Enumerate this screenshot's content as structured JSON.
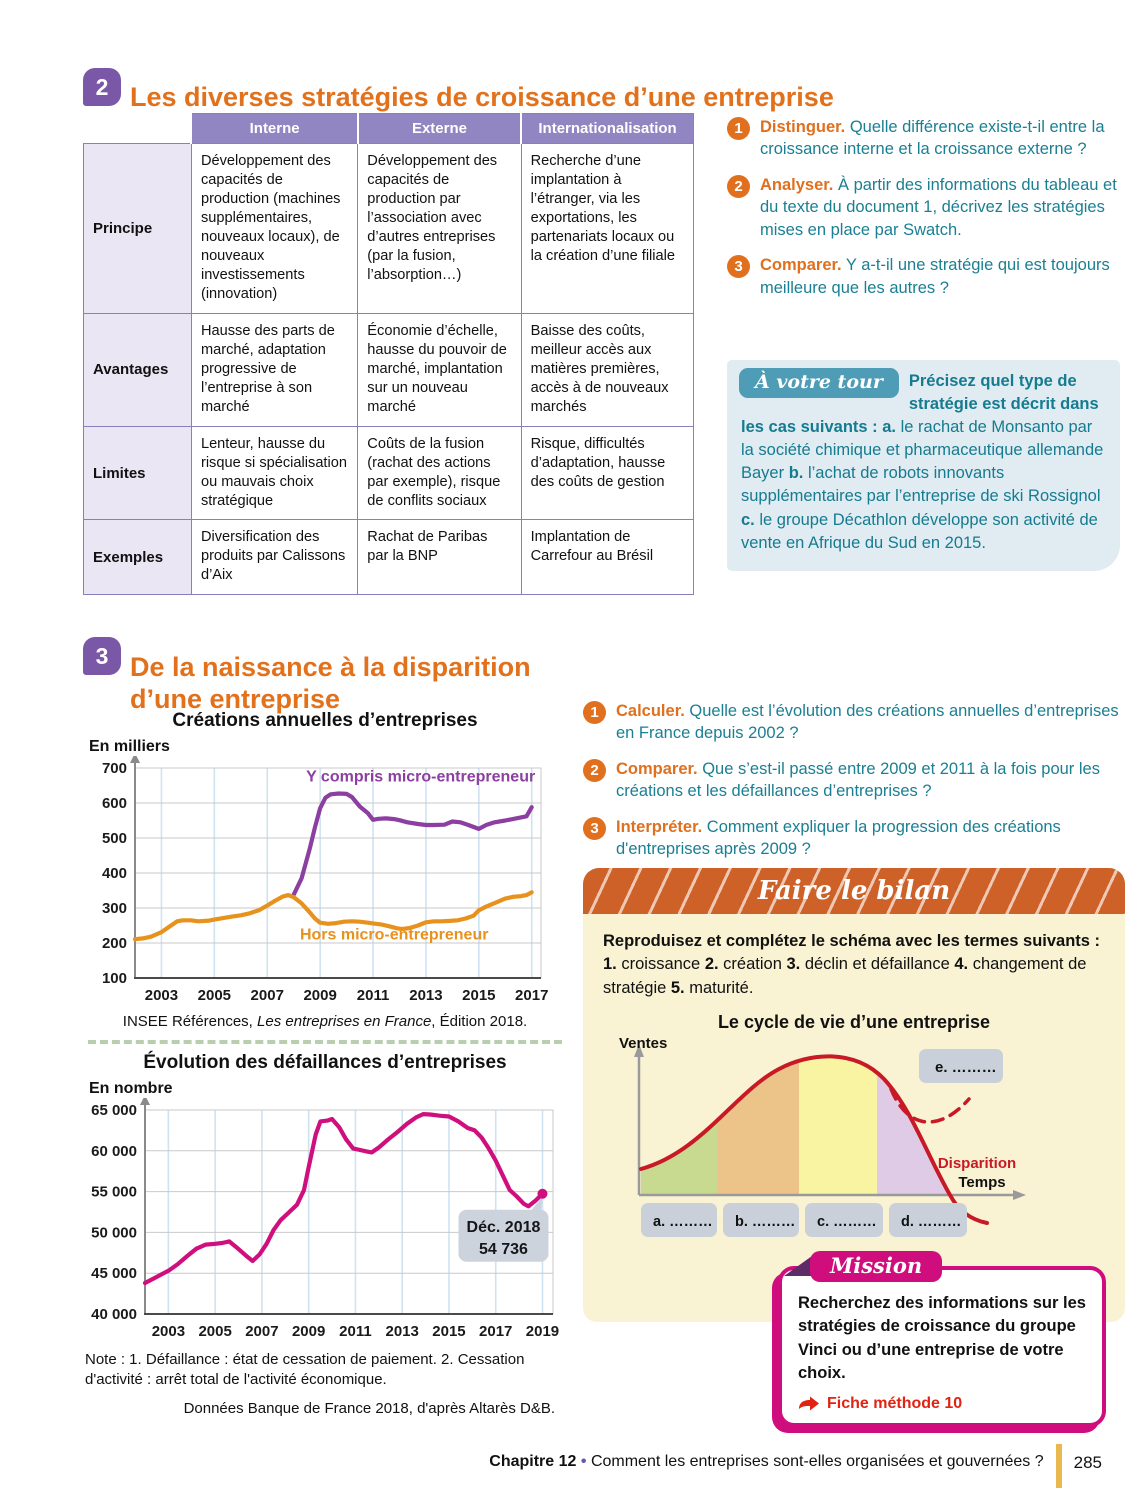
{
  "s2": {
    "num": "2",
    "title": "Les diverses stratégies de croissance d’une entreprise",
    "table": {
      "headers": [
        "Interne",
        "Externe",
        "Internationalisation"
      ],
      "rows": [
        {
          "label": "Principe",
          "cells": [
            "Développement des capacités de production (machines supplémentaires, nouveaux locaux), de nouveaux investissements (innovation)",
            "Développement des capacités de production par l’association avec d’autres entreprises (par la fusion, l’absorption…)",
            "Recherche d’une implantation à l’étranger, via les exportations, les partenariats locaux ou la création d’une filiale"
          ]
        },
        {
          "label": "Avantages",
          "cells": [
            "Hausse des parts de marché, adaptation progressive de l’entreprise à son marché",
            "Économie d’échelle, hausse du pouvoir de marché, implantation sur un nouveau marché",
            "Baisse des coûts, meilleur accès aux matières premières, accès à de nouveaux marchés"
          ]
        },
        {
          "label": "Limites",
          "cells": [
            "Lenteur, hausse du risque si spécialisation ou mauvais choix stratégique",
            "Coûts de la fusion (rachat des actions par exemple), risque de conflits sociaux",
            "Risque, difficultés d’adaptation, hausse des coûts de gestion"
          ]
        },
        {
          "label": "Exemples",
          "cells": [
            "Diversification des produits par Calissons d’Aix",
            "Rachat de Paribas par la BNP",
            "Implantation de Carrefour au Brésil"
          ]
        }
      ]
    },
    "questions": [
      {
        "num": "1",
        "verb": "Distinguer.",
        "text": " Quelle différence existe-t-il entre la croissance interne et la croissance externe ?"
      },
      {
        "num": "2",
        "verb": "Analyser.",
        "text": " À partir des informations du tableau et du texte du document 1, décrivez les stratégies mises en place par Swatch."
      },
      {
        "num": "3",
        "verb": "Comparer.",
        "text": " Y a-t-il une stratégie qui est toujours meilleure que les autres ?"
      }
    ],
    "avt": {
      "tab": "À votre tour",
      "segments": [
        {
          "t": "Précisez quel type de stratégie est décrit dans les cas suivants : ",
          "b": true
        },
        {
          "t": "a.",
          "b": true
        },
        {
          "t": " le rachat de Monsanto par la société chimique et pharmaceutique allemande Bayer "
        },
        {
          "t": "b.",
          "b": true
        },
        {
          "t": " l’achat de robots innovants supplémentaires par l’entreprise de ski Rossignol "
        },
        {
          "t": "c.",
          "b": true
        },
        {
          "t": " le groupe Décathlon développe son activité de vente en Afrique du Sud en 2015."
        }
      ]
    }
  },
  "s3": {
    "num": "3",
    "title1": "De la naissance à la disparition",
    "title2": "d’une entreprise",
    "questions": [
      {
        "num": "1",
        "verb": "Calculer.",
        "text": " Quelle est l’évolution des créations annuelles d’entreprises en France depuis 2002 ?"
      },
      {
        "num": "2",
        "verb": "Comparer.",
        "text": " Que s’est-il passé entre 2009 et 2011 à la fois pour les créations et les défaillances d’entreprises ?"
      },
      {
        "num": "3",
        "verb": "Interpréter.",
        "text": " Comment expliquer la progression des créations d'entreprises après 2009 ?"
      }
    ]
  },
  "chart_data": [
    {
      "type": "line",
      "title": "Créations annuelles d’entreprises",
      "unit": "En milliers",
      "xlim": [
        2002,
        2017.35
      ],
      "ylim": [
        100,
        700
      ],
      "yticks": [
        {
          "v": 100,
          "label": "100"
        },
        {
          "v": 200,
          "label": "200"
        },
        {
          "v": 300,
          "label": "300"
        },
        {
          "v": 400,
          "label": "400"
        },
        {
          "v": 500,
          "label": "500"
        },
        {
          "v": 600,
          "label": "600"
        },
        {
          "v": 700,
          "label": "700"
        }
      ],
      "xticks": [
        {
          "v": 2003,
          "label": "2003"
        },
        {
          "v": 2005,
          "label": "2005"
        },
        {
          "v": 2007,
          "label": "2007"
        },
        {
          "v": 2009,
          "label": "2009"
        },
        {
          "v": 2011,
          "label": "2011"
        },
        {
          "v": 2013,
          "label": "2013"
        },
        {
          "v": 2015,
          "label": "2015"
        },
        {
          "v": 2017,
          "label": "2017"
        }
      ],
      "series": [
        {
          "name": "Y compris micro-entrepreneur",
          "color": "#8c3fa0",
          "label_pos": [
            2012.8,
            662
          ],
          "points": [
            [
              2008,
              338
            ],
            [
              2008.3,
              385
            ],
            [
              2008.6,
              468
            ],
            [
              2008.8,
              530
            ],
            [
              2009,
              585
            ],
            [
              2009.2,
              615
            ],
            [
              2009.4,
              625
            ],
            [
              2009.7,
              627
            ],
            [
              2010,
              626
            ],
            [
              2010.2,
              617
            ],
            [
              2010.5,
              590
            ],
            [
              2010.8,
              571
            ],
            [
              2011,
              552
            ],
            [
              2011.2,
              555
            ],
            [
              2011.5,
              556
            ],
            [
              2011.8,
              554
            ],
            [
              2012,
              551
            ],
            [
              2012.3,
              545
            ],
            [
              2012.7,
              540
            ],
            [
              2013,
              537
            ],
            [
              2013.3,
              537
            ],
            [
              2013.7,
              538
            ],
            [
              2014,
              547
            ],
            [
              2014.3,
              545
            ],
            [
              2014.6,
              537
            ],
            [
              2015,
              526
            ],
            [
              2015.3,
              538
            ],
            [
              2015.6,
              545
            ],
            [
              2016,
              550
            ],
            [
              2016.4,
              556
            ],
            [
              2016.8,
              562
            ],
            [
              2017,
              588
            ]
          ]
        },
        {
          "name": "Hors micro-entrepreneur",
          "color": "#e8921e",
          "label_pos": [
            2011.8,
            210
          ],
          "points": [
            [
              2002,
              211
            ],
            [
              2002.3,
              213
            ],
            [
              2002.6,
              218
            ],
            [
              2003,
              231
            ],
            [
              2003.3,
              247
            ],
            [
              2003.6,
              262
            ],
            [
              2003.8,
              265
            ],
            [
              2004.1,
              265
            ],
            [
              2004.4,
              262
            ],
            [
              2004.8,
              264
            ],
            [
              2005,
              267
            ],
            [
              2005.3,
              271
            ],
            [
              2005.7,
              276
            ],
            [
              2006,
              279
            ],
            [
              2006.3,
              284
            ],
            [
              2006.7,
              294
            ],
            [
              2007,
              307
            ],
            [
              2007.3,
              321
            ],
            [
              2007.6,
              333
            ],
            [
              2007.8,
              337
            ],
            [
              2008,
              331
            ],
            [
              2008.3,
              313
            ],
            [
              2008.6,
              288
            ],
            [
              2008.8,
              270
            ],
            [
              2009,
              258
            ],
            [
              2009.3,
              255
            ],
            [
              2009.6,
              257
            ],
            [
              2009.9,
              261
            ],
            [
              2010.2,
              262
            ],
            [
              2010.5,
              261
            ],
            [
              2010.8,
              258
            ],
            [
              2011,
              256
            ],
            [
              2011.3,
              253
            ],
            [
              2011.6,
              248
            ],
            [
              2011.9,
              242
            ],
            [
              2012.1,
              240
            ],
            [
              2012.4,
              243
            ],
            [
              2012.7,
              250
            ],
            [
              2013,
              259
            ],
            [
              2013.3,
              262
            ],
            [
              2013.6,
              262
            ],
            [
              2013.9,
              263
            ],
            [
              2014.2,
              265
            ],
            [
              2014.5,
              270
            ],
            [
              2014.8,
              278
            ],
            [
              2015,
              293
            ],
            [
              2015.3,
              305
            ],
            [
              2015.6,
              314
            ],
            [
              2016,
              327
            ],
            [
              2016.3,
              332
            ],
            [
              2016.6,
              334
            ],
            [
              2016.8,
              337
            ],
            [
              2017,
              345
            ]
          ]
        }
      ],
      "source_segments": [
        {
          "t": "INSEE Références, "
        },
        {
          "t": "Les entreprises en France",
          "i": true
        },
        {
          "t": ", Édition 2018."
        }
      ]
    },
    {
      "type": "line",
      "title": "Évolution des défaillances d’entreprises",
      "unit": "En nombre",
      "xlim": [
        2002,
        2019.45
      ],
      "ylim": [
        40000,
        65000
      ],
      "yticks": [
        {
          "v": 40000,
          "label": "40 000"
        },
        {
          "v": 45000,
          "label": "45 000"
        },
        {
          "v": 50000,
          "label": "50 000"
        },
        {
          "v": 55000,
          "label": "55 000"
        },
        {
          "v": 60000,
          "label": "60 000"
        },
        {
          "v": 65000,
          "label": "65 000"
        }
      ],
      "xticks": [
        {
          "v": 2003,
          "label": "2003"
        },
        {
          "v": 2005,
          "label": "2005"
        },
        {
          "v": 2007,
          "label": "2007"
        },
        {
          "v": 2009,
          "label": "2009"
        },
        {
          "v": 2011,
          "label": "2011"
        },
        {
          "v": 2013,
          "label": "2013"
        },
        {
          "v": 2015,
          "label": "2015"
        },
        {
          "v": 2017,
          "label": "2017"
        },
        {
          "v": 2019,
          "label": "2019"
        }
      ],
      "series": [
        {
          "name": "Défaillances d’entreprises",
          "color": "#cf0f7d",
          "points": [
            [
              2002,
              43800
            ],
            [
              2002.4,
              44400
            ],
            [
              2002.8,
              45000
            ],
            [
              2003,
              45300
            ],
            [
              2003.4,
              46100
            ],
            [
              2003.8,
              47100
            ],
            [
              2004.2,
              48000
            ],
            [
              2004.6,
              48500
            ],
            [
              2005,
              48600
            ],
            [
              2005.3,
              48700
            ],
            [
              2005.6,
              48900
            ],
            [
              2005.9,
              48200
            ],
            [
              2006.3,
              47200
            ],
            [
              2006.6,
              46500
            ],
            [
              2006.9,
              47300
            ],
            [
              2007.2,
              48600
            ],
            [
              2007.5,
              50300
            ],
            [
              2007.8,
              51500
            ],
            [
              2008.1,
              52300
            ],
            [
              2008.5,
              53400
            ],
            [
              2008.8,
              55200
            ],
            [
              2009,
              58000
            ],
            [
              2009.3,
              62000
            ],
            [
              2009.5,
              63600
            ],
            [
              2009.8,
              63700
            ],
            [
              2010,
              63900
            ],
            [
              2010.3,
              62900
            ],
            [
              2010.6,
              61400
            ],
            [
              2010.9,
              60300
            ],
            [
              2011.2,
              60100
            ],
            [
              2011.5,
              59900
            ],
            [
              2011.7,
              59800
            ],
            [
              2012,
              60400
            ],
            [
              2012.4,
              61400
            ],
            [
              2012.8,
              62300
            ],
            [
              2013.2,
              63300
            ],
            [
              2013.6,
              64100
            ],
            [
              2013.9,
              64500
            ],
            [
              2014.2,
              64450
            ],
            [
              2014.6,
              64300
            ],
            [
              2015,
              64200
            ],
            [
              2015.4,
              63600
            ],
            [
              2015.8,
              62800
            ],
            [
              2016.1,
              62500
            ],
            [
              2016.4,
              61600
            ],
            [
              2016.7,
              60300
            ],
            [
              2017,
              58800
            ],
            [
              2017.3,
              57000
            ],
            [
              2017.6,
              55200
            ],
            [
              2017.9,
              54400
            ],
            [
              2018.2,
              53500
            ],
            [
              2018.4,
              53200
            ],
            [
              2018.7,
              53900
            ],
            [
              2019,
              54736
            ]
          ]
        }
      ],
      "annotation": {
        "x": 2019,
        "y": 54736,
        "line1": "Déc. 2018",
        "line2": "54 736"
      },
      "note": "Note : 1. Défaillance : état de cessation de paiement. 2. Cessation d'activité : arrêt total de l'activité économique.",
      "source": "Données Banque de France 2018, d'après Altarès D&B."
    }
  ],
  "bilan": {
    "header": "Faire le bilan",
    "intro_segments": [
      {
        "t": "Reproduisez et complétez le schéma avec les termes suivants : ",
        "b": true
      },
      {
        "t": "1. ",
        "b": true
      },
      {
        "t": "croissance "
      },
      {
        "t": "2. ",
        "b": true
      },
      {
        "t": "création "
      },
      {
        "t": "3. ",
        "b": true
      },
      {
        "t": "déclin et défaillance "
      },
      {
        "t": "4. ",
        "b": true
      },
      {
        "t": "changement de stratégie "
      },
      {
        "t": "5. ",
        "b": true
      },
      {
        "t": "maturité."
      }
    ],
    "diagram": {
      "title": "Le cycle de vie d’une entreprise",
      "ylabel": "Ventes",
      "xlabel": "Temps",
      "disparition": "Disparition",
      "boxes": [
        "a. ………",
        "b. ………",
        "c. ………",
        "d. ………"
      ],
      "e_box": "e. ………",
      "colors": {
        "phase1": "#c8da90",
        "phase2": "#ecc489",
        "phase3": "#f9f4a2",
        "phase4": "#dfcbe5",
        "curve": "#c81a26"
      }
    }
  },
  "mission": {
    "tab": "Mission",
    "text": "Recherchez des informations sur les stratégies de croissance du groupe Vinci ou d’une entreprise de votre choix.",
    "link": "Fiche méthode 10"
  },
  "footer": {
    "chapter": "Chapitre 12",
    "sep": "•",
    "title": "Comment les entreprises sont-elles organisées et gouvernées ?",
    "page": "285"
  }
}
